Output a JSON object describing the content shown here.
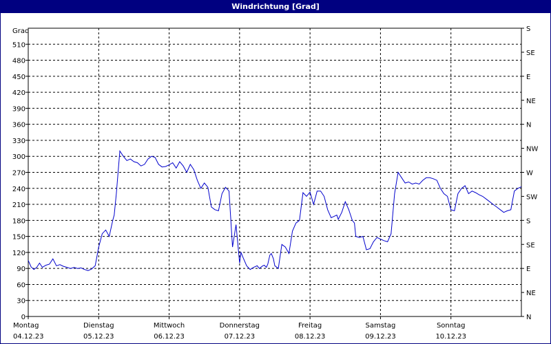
{
  "window": {
    "title": "Windrichtung [Grad]"
  },
  "chart_data": {
    "type": "line",
    "title": "Windrichtung [Grad]",
    "ylabel": "Grad",
    "ylim": [
      0,
      540
    ],
    "yticks": [
      0,
      30,
      60,
      90,
      120,
      150,
      180,
      210,
      240,
      270,
      300,
      330,
      360,
      390,
      420,
      450,
      480,
      510
    ],
    "right_axis_labels": [
      {
        "value": 0,
        "label": "N"
      },
      {
        "value": 45,
        "label": "NE"
      },
      {
        "value": 90,
        "label": "E"
      },
      {
        "value": 135,
        "label": "SE"
      },
      {
        "value": 180,
        "label": "S"
      },
      {
        "value": 225,
        "label": "SW"
      },
      {
        "value": 270,
        "label": "W"
      },
      {
        "value": 315,
        "label": "NW"
      },
      {
        "value": 360,
        "label": "N"
      },
      {
        "value": 405,
        "label": "NE"
      },
      {
        "value": 450,
        "label": "E"
      },
      {
        "value": 495,
        "label": "SE"
      },
      {
        "value": 540,
        "label": "S"
      }
    ],
    "x_axis": {
      "unit": "days",
      "range": [
        0,
        7
      ],
      "ticks": [
        {
          "day": 0,
          "weekday": "Montag",
          "date": "04.12.23"
        },
        {
          "day": 1,
          "weekday": "Dienstag",
          "date": "05.12.23"
        },
        {
          "day": 2,
          "weekday": "Mittwoch",
          "date": "06.12.23"
        },
        {
          "day": 3,
          "weekday": "Donnerstag",
          "date": "07.12.23"
        },
        {
          "day": 4,
          "weekday": "Freitag",
          "date": "08.12.23"
        },
        {
          "day": 5,
          "weekday": "Samstag",
          "date": "09.12.23"
        },
        {
          "day": 6,
          "weekday": "Sonntag",
          "date": "10.12.23"
        }
      ]
    },
    "grid": true,
    "line_color": "#0000cc",
    "series": [
      {
        "x": [
          0,
          0.04,
          0.08,
          0.12,
          0.16,
          0.2,
          0.25,
          0.3,
          0.35,
          0.4,
          0.45,
          0.5,
          0.55,
          0.6,
          0.65,
          0.7,
          0.75,
          0.8,
          0.85,
          0.9,
          0.95,
          1.0,
          1.05,
          1.1,
          1.15,
          1.2,
          1.22,
          1.25,
          1.3,
          1.35,
          1.4,
          1.45,
          1.5,
          1.55,
          1.6,
          1.65,
          1.7,
          1.75,
          1.8,
          1.85,
          1.9,
          1.95,
          2.0,
          2.05,
          2.1,
          2.15,
          2.2,
          2.25,
          2.3,
          2.35,
          2.4,
          2.45,
          2.5,
          2.55,
          2.6,
          2.65,
          2.7,
          2.75,
          2.8,
          2.85,
          2.9,
          2.95,
          3.0,
          3.02,
          3.05,
          3.1,
          3.15,
          3.2,
          3.25,
          3.28,
          3.3,
          3.33,
          3.35,
          3.38,
          3.4,
          3.43,
          3.45,
          3.48,
          3.5,
          3.55,
          3.6,
          3.65,
          3.7,
          3.75,
          3.8,
          3.85,
          3.9,
          3.95,
          4.0,
          4.05,
          4.1,
          4.15,
          4.2,
          4.25,
          4.3,
          4.35,
          4.38,
          4.4,
          4.45,
          4.5,
          4.55,
          4.6,
          4.63,
          4.65,
          4.7,
          4.75,
          4.8,
          4.85,
          4.9,
          4.95,
          5.0,
          5.05,
          5.1,
          5.15,
          5.2,
          5.25,
          5.3,
          5.35,
          5.4,
          5.45,
          5.5,
          5.55,
          5.6,
          5.65,
          5.7,
          5.75,
          5.8,
          5.85,
          5.9,
          5.95,
          6.0,
          6.05,
          6.1,
          6.15,
          6.2,
          6.25,
          6.3,
          6.35,
          6.4,
          6.45,
          6.5,
          6.55,
          6.6,
          6.65,
          6.7,
          6.75,
          6.8,
          6.85,
          6.9,
          6.95,
          7.0
        ],
        "y": [
          105,
          93,
          88,
          92,
          100,
          92,
          96,
          98,
          108,
          95,
          97,
          94,
          92,
          90,
          92,
          90,
          91,
          88,
          86,
          89,
          95,
          130,
          155,
          162,
          150,
          180,
          190,
          230,
          310,
          300,
          292,
          295,
          290,
          288,
          282,
          285,
          295,
          300,
          298,
          285,
          280,
          281,
          284,
          288,
          278,
          290,
          282,
          270,
          285,
          275,
          255,
          240,
          250,
          242,
          205,
          200,
          198,
          230,
          242,
          235,
          130,
          172,
          100,
          120,
          110,
          95,
          88,
          92,
          95,
          90,
          92,
          95,
          96,
          92,
          98,
          115,
          118,
          108,
          95,
          90,
          135,
          130,
          118,
          160,
          175,
          180,
          232,
          225,
          233,
          210,
          235,
          235,
          225,
          200,
          185,
          188,
          190,
          182,
          195,
          215,
          200,
          180,
          175,
          150,
          148,
          150,
          125,
          127,
          140,
          148,
          145,
          142,
          140,
          155,
          230,
          270,
          260,
          250,
          252,
          248,
          250,
          248,
          255,
          260,
          260,
          258,
          255,
          240,
          230,
          225,
          200,
          198,
          230,
          240,
          245,
          230,
          235,
          232,
          228,
          225,
          220,
          215,
          210,
          205,
          200,
          195,
          198,
          200,
          235,
          240,
          243
        ]
      }
    ]
  }
}
